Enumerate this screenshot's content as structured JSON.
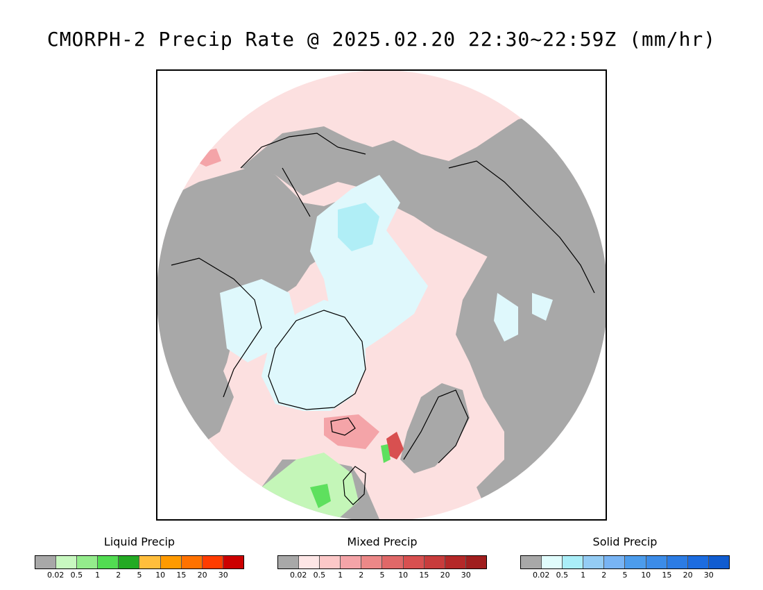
{
  "title": "CMORPH-2 Precip Rate @ 2025.02.20 22:30~22:59Z (mm/hr)",
  "map": {
    "projection": "north-polar-stereographic",
    "colors": {
      "no_precip": "#a8a8a8",
      "liquid_background": "#fce0e0",
      "mixed_light": "#fde6e6",
      "mixed_moderate": "#f4a4a8",
      "mixed_heavy": "#d85050",
      "snow_light": "#dff8fc",
      "snow_moderate": "#b0eef6",
      "snow_heavy": "#8cc8f0",
      "rain_light": "#c4f6b8",
      "rain_moderate": "#5ee05e",
      "rain_heavy": "#22b022",
      "coastline": "#000000"
    }
  },
  "legends": [
    {
      "id": "liquid",
      "title": "Liquid Precip",
      "colors": [
        "#a8a8a8",
        "#c8f8c0",
        "#94ec8c",
        "#52dc52",
        "#24aa24",
        "#ffbe3c",
        "#ff9a00",
        "#ff7200",
        "#ff3c00",
        "#cc0000"
      ],
      "ticks": [
        "0.02",
        "0.5",
        "1",
        "2",
        "5",
        "10",
        "15",
        "20",
        "30"
      ]
    },
    {
      "id": "mixed",
      "title": "Mixed Precip",
      "colors": [
        "#a8a8a8",
        "#fde6e6",
        "#fcc8c8",
        "#f4a4a8",
        "#ec8888",
        "#e06868",
        "#d85050",
        "#c83c3c",
        "#b42828",
        "#a01e1e"
      ],
      "ticks": [
        "0.02",
        "0.5",
        "1",
        "2",
        "5",
        "10",
        "15",
        "20",
        "30"
      ]
    },
    {
      "id": "solid",
      "title": "Solid Precip",
      "colors": [
        "#a8a8a8",
        "#e0fcfc",
        "#aaeef8",
        "#94ccf4",
        "#78b4f4",
        "#4c9cec",
        "#3c8ce8",
        "#2c7ce4",
        "#1c6ce0",
        "#105cd0"
      ],
      "ticks": [
        "0.02",
        "0.5",
        "1",
        "2",
        "5",
        "10",
        "15",
        "20",
        "30"
      ]
    }
  ]
}
